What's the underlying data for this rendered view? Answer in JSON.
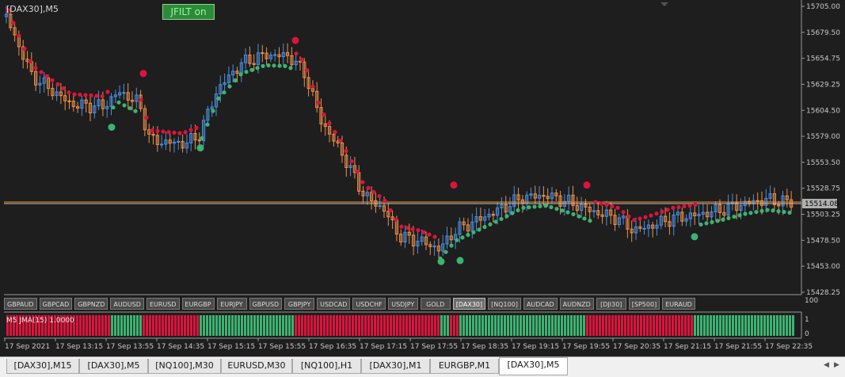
{
  "window": {
    "symbol_label": "[DAX30],M5",
    "jfilt_button": "JFILT on"
  },
  "chart": {
    "price_scale": [
      "15705.00",
      "15679.50",
      "15654.75",
      "15629.25",
      "15604.50",
      "15579.00",
      "15553.50",
      "15528.75",
      "15503.25",
      "15478.50",
      "15453.00",
      "15428.25"
    ],
    "current_price": "15514.08",
    "current_price_color": "#b0b0b0",
    "time_labels": [
      "17 Sep 2021",
      "17 Sep 13:15",
      "17 Sep 13:55",
      "17 Sep 14:35",
      "17 Sep 15:15",
      "17 Sep 15:55",
      "17 Sep 16:35",
      "17 Sep 17:15",
      "17 Sep 17:55",
      "17 Sep 18:35",
      "17 Sep 19:15",
      "17 Sep 19:55",
      "17 Sep 20:35",
      "17 Sep 21:15",
      "17 Sep 21:55",
      "17 Sep 22:35"
    ],
    "colors": {
      "background": "#1e1e1e",
      "bull_candle": "#4a90e2",
      "bear_candle": "#f0904a",
      "dot_down": "#dc143c",
      "dot_up": "#3cb371",
      "price_line": "#ff8c1a",
      "grid_text": "#c8c8c8"
    }
  },
  "symbol_buttons": [
    "GBPAUD",
    "GBPCAD",
    "GBPNZD",
    "AUDUSD",
    "EURUSD",
    "EURGBP",
    "EURJPY",
    "GBPUSD",
    "GBPJPY",
    "USDCAD",
    "USDCHF",
    "USDJPY",
    "GOLD",
    "[DAX30]",
    "[NQ100]",
    "AUDCAD",
    "AUDNZD",
    "[DJI30]",
    "[SP500]",
    "EURAUD"
  ],
  "active_symbol": "[DAX30]",
  "indicator": {
    "label": "M5 JMA(15) 1.0000",
    "scale": [
      "100",
      "1",
      "0"
    ]
  },
  "tabs": [
    "[DAX30],M15",
    "[DAX30],M5",
    "[NQ100],M30",
    "EURUSD,M30",
    "[NQ100],H1",
    "[DAX30],M1",
    "EURGBP,M1",
    "[DAX30],M5"
  ],
  "active_tab": 7
}
